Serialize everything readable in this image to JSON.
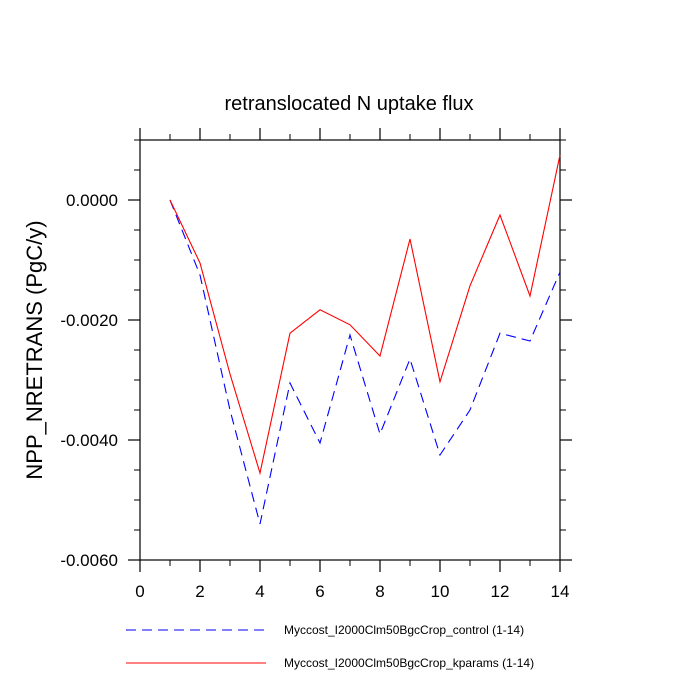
{
  "chart_data": {
    "type": "line",
    "title": "retranslocated N uptake flux",
    "xlabel": "",
    "ylabel": "NPP_NRETRANS  (PgC/y)",
    "xlim": [
      0,
      14
    ],
    "ylim": [
      -0.006,
      0.001
    ],
    "xticks": [
      0,
      2,
      4,
      6,
      8,
      10,
      12,
      14
    ],
    "xtick_labels": [
      "0",
      "2",
      "4",
      "6",
      "8",
      "10",
      "12",
      "14"
    ],
    "yticks": [
      0,
      -0.002,
      -0.004,
      -0.006
    ],
    "ytick_labels": [
      "0.0000",
      "-0.0020",
      "-0.0040",
      "-0.0060"
    ],
    "grid": false,
    "legend_position": "bottom",
    "x": [
      1,
      2,
      3,
      4,
      5,
      6,
      7,
      8,
      9,
      10,
      11,
      12,
      13,
      14
    ],
    "series": [
      {
        "name": "Myccost_I2000Clm50BgcCrop_control (1-14)",
        "color": "#0000ff",
        "dash": "dashed",
        "values": [
          0.0,
          -0.00125,
          -0.0035,
          -0.0054,
          -0.00305,
          -0.00405,
          -0.00225,
          -0.0039,
          -0.00265,
          -0.00425,
          -0.0035,
          -0.00222,
          -0.00235,
          -0.0012
        ]
      },
      {
        "name": "Myccost_I2000Clm50BgcCrop_kparams (1-14)",
        "color": "#ff0000",
        "dash": "solid",
        "values": [
          0.0,
          -0.00105,
          -0.0029,
          -0.00455,
          -0.00222,
          -0.00183,
          -0.00208,
          -0.0026,
          -0.00065,
          -0.00303,
          -0.00143,
          -0.00025,
          -0.0016,
          0.00075
        ]
      }
    ]
  }
}
